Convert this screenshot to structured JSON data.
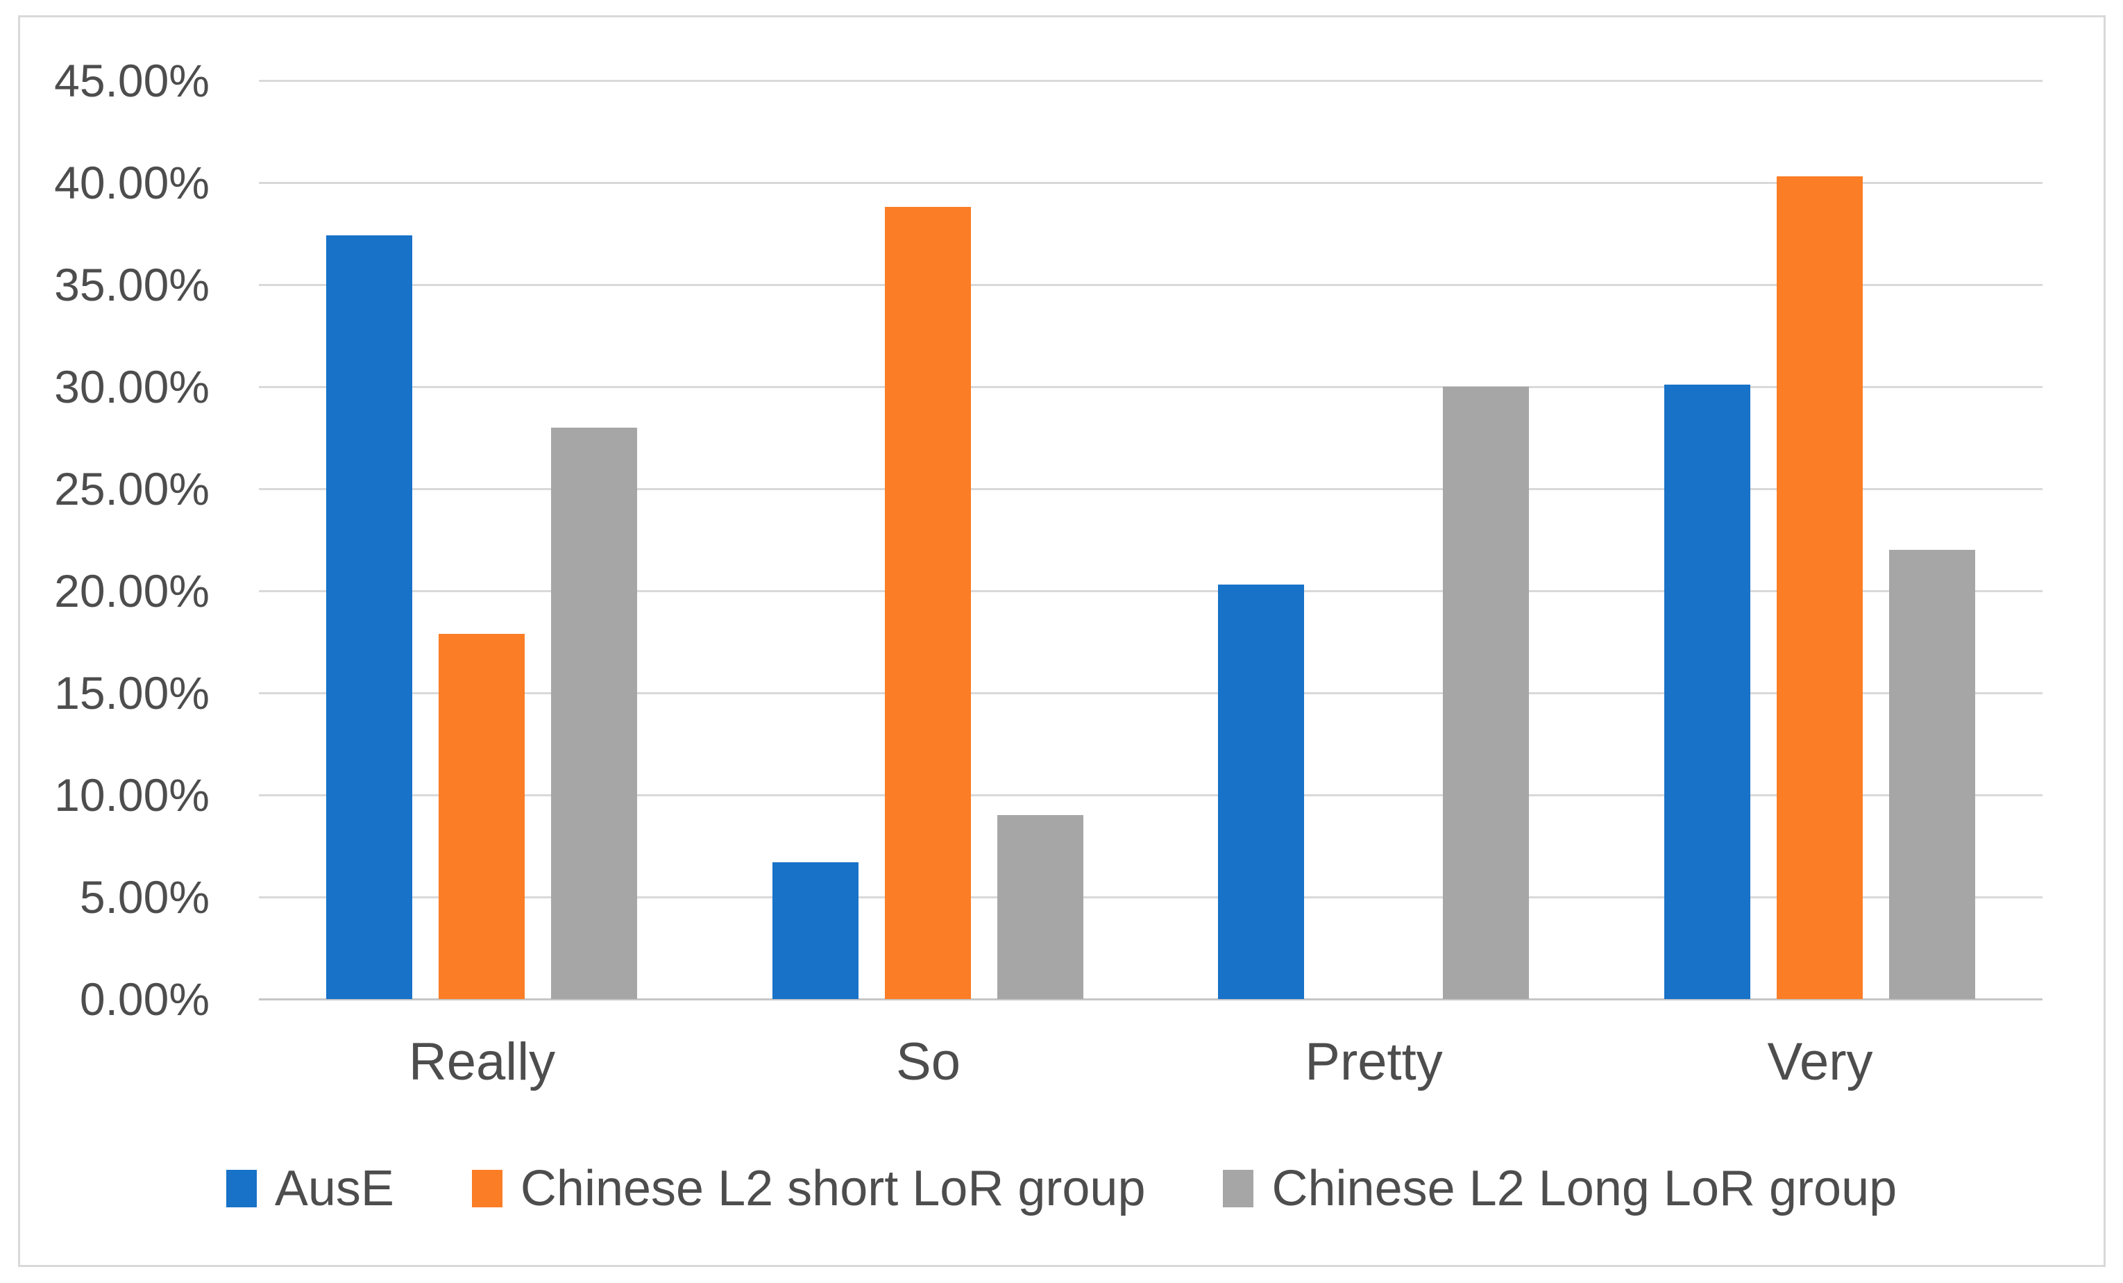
{
  "figure": {
    "background_color": "#FFFFFF",
    "border_color": "#D9D9D9",
    "text_color": "#4D4D4D",
    "gridline_color": "#D9D9D9"
  },
  "chart_data": {
    "type": "bar",
    "title": "",
    "xlabel": "",
    "ylabel": "",
    "categories": [
      "Really",
      "So",
      "Pretty",
      "Very"
    ],
    "series": [
      {
        "name": "AusE",
        "color": "#1772C8",
        "values": [
          37.4,
          6.7,
          20.3,
          30.1
        ]
      },
      {
        "name": "Chinese L2 short LoR group",
        "color": "#FB7D26",
        "values": [
          17.9,
          38.8,
          0,
          40.3
        ]
      },
      {
        "name": "Chinese L2 Long LoR group",
        "color": "#A6A6A6",
        "values": [
          28.0,
          9.0,
          30.0,
          22.0
        ]
      }
    ],
    "y_axis": {
      "min": 0,
      "max": 45,
      "step": 5,
      "unit": "percent",
      "tick_labels": [
        "0.00%",
        "5.00%",
        "10.00%",
        "15.00%",
        "20.00%",
        "25.00%",
        "30.00%",
        "35.00%",
        "40.00%",
        "45.00%"
      ],
      "gridlines": true
    },
    "legend_position": "bottom"
  }
}
